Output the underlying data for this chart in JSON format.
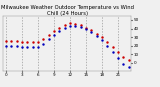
{
  "title": "Milwaukee Weather Outdoor Temperature vs Wind Chill (24 Hours)",
  "title_fontsize": 3.8,
  "background_color": "#f0f0f0",
  "grid_color": "#999999",
  "hours": [
    0,
    1,
    2,
    3,
    4,
    5,
    6,
    7,
    8,
    9,
    10,
    11,
    12,
    13,
    14,
    15,
    16,
    17,
    18,
    19,
    20,
    21,
    22,
    23
  ],
  "outdoor_temp": [
    26,
    25,
    25,
    24,
    24,
    24,
    24,
    28,
    33,
    37,
    41,
    44,
    46,
    45,
    44,
    41,
    38,
    34,
    30,
    24,
    18,
    12,
    7,
    3
  ],
  "wind_chill": [
    20,
    19,
    19,
    18,
    18,
    18,
    18,
    22,
    28,
    32,
    37,
    41,
    43,
    43,
    42,
    39,
    36,
    31,
    27,
    20,
    13,
    5,
    -1,
    -5
  ],
  "temp_color": "#cc0000",
  "chill_color": "#0000bb",
  "ylim": [
    -10,
    55
  ],
  "yticks": [
    0,
    10,
    20,
    30,
    40,
    50
  ],
  "ytick_labels": [
    "0",
    "10",
    "20",
    "30",
    "40",
    "50"
  ],
  "xtick_positions": [
    0,
    3,
    6,
    9,
    12,
    15,
    18,
    21
  ],
  "xtick_labels": [
    "0",
    "3",
    "6",
    "9",
    "12",
    "15",
    "18",
    "21"
  ],
  "marker_size": 1.5,
  "tick_fontsize": 3.0
}
